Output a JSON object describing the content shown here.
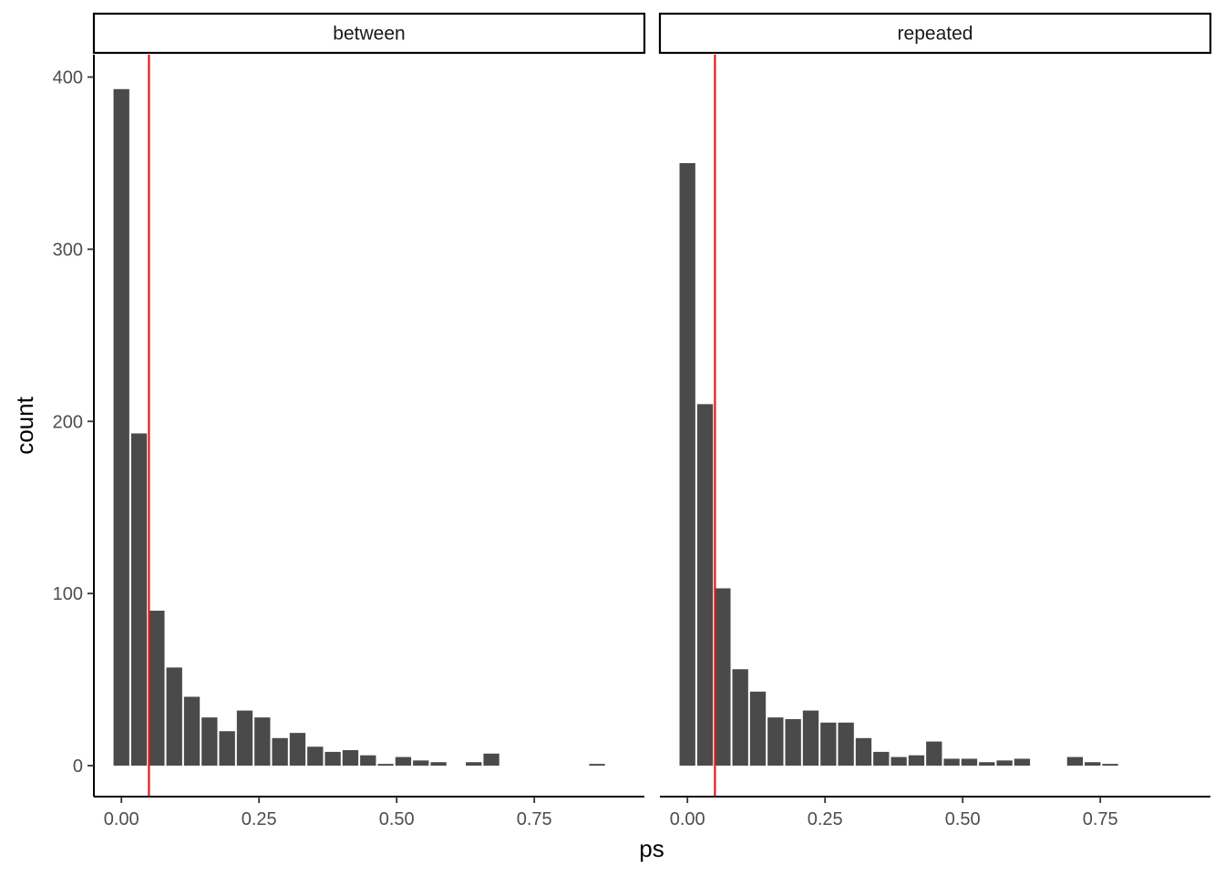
{
  "chart_data": {
    "type": "bar",
    "xlabel": "ps",
    "ylabel": "count",
    "xlim": [
      -0.05,
      0.95
    ],
    "ylim": [
      -18,
      413
    ],
    "x_ticks": [
      0,
      0.25,
      0.5,
      0.75
    ],
    "x_tick_labels": [
      "0.00",
      "0.25",
      "0.50",
      "0.75"
    ],
    "y_ticks": [
      0,
      100,
      200,
      300,
      400
    ],
    "y_tick_labels": [
      "0",
      "100",
      "200",
      "300",
      "400"
    ],
    "bin_width": 0.032,
    "bar_color": "#4a4a4a",
    "reference_line": {
      "x": 0.05,
      "color": "#e31a1c"
    },
    "panels": [
      {
        "label": "between",
        "bins": [
          {
            "x": 0.0,
            "count": 393
          },
          {
            "x": 0.032,
            "count": 193
          },
          {
            "x": 0.064,
            "count": 90
          },
          {
            "x": 0.096,
            "count": 57
          },
          {
            "x": 0.128,
            "count": 40
          },
          {
            "x": 0.16,
            "count": 28
          },
          {
            "x": 0.192,
            "count": 20
          },
          {
            "x": 0.224,
            "count": 32
          },
          {
            "x": 0.256,
            "count": 28
          },
          {
            "x": 0.288,
            "count": 16
          },
          {
            "x": 0.32,
            "count": 19
          },
          {
            "x": 0.352,
            "count": 11
          },
          {
            "x": 0.384,
            "count": 8
          },
          {
            "x": 0.416,
            "count": 9
          },
          {
            "x": 0.448,
            "count": 6
          },
          {
            "x": 0.48,
            "count": 1
          },
          {
            "x": 0.512,
            "count": 5
          },
          {
            "x": 0.544,
            "count": 3
          },
          {
            "x": 0.576,
            "count": 2
          },
          {
            "x": 0.64,
            "count": 2
          },
          {
            "x": 0.672,
            "count": 7
          },
          {
            "x": 0.864,
            "count": 1
          }
        ]
      },
      {
        "label": "repeated",
        "bins": [
          {
            "x": 0.0,
            "count": 350
          },
          {
            "x": 0.032,
            "count": 210
          },
          {
            "x": 0.064,
            "count": 103
          },
          {
            "x": 0.096,
            "count": 56
          },
          {
            "x": 0.128,
            "count": 43
          },
          {
            "x": 0.16,
            "count": 28
          },
          {
            "x": 0.192,
            "count": 27
          },
          {
            "x": 0.224,
            "count": 32
          },
          {
            "x": 0.256,
            "count": 25
          },
          {
            "x": 0.288,
            "count": 25
          },
          {
            "x": 0.32,
            "count": 16
          },
          {
            "x": 0.352,
            "count": 8
          },
          {
            "x": 0.384,
            "count": 5
          },
          {
            "x": 0.416,
            "count": 6
          },
          {
            "x": 0.448,
            "count": 14
          },
          {
            "x": 0.48,
            "count": 4
          },
          {
            "x": 0.512,
            "count": 4
          },
          {
            "x": 0.544,
            "count": 2
          },
          {
            "x": 0.576,
            "count": 3
          },
          {
            "x": 0.608,
            "count": 4
          },
          {
            "x": 0.704,
            "count": 5
          },
          {
            "x": 0.736,
            "count": 2
          },
          {
            "x": 0.768,
            "count": 1
          }
        ]
      }
    ]
  }
}
